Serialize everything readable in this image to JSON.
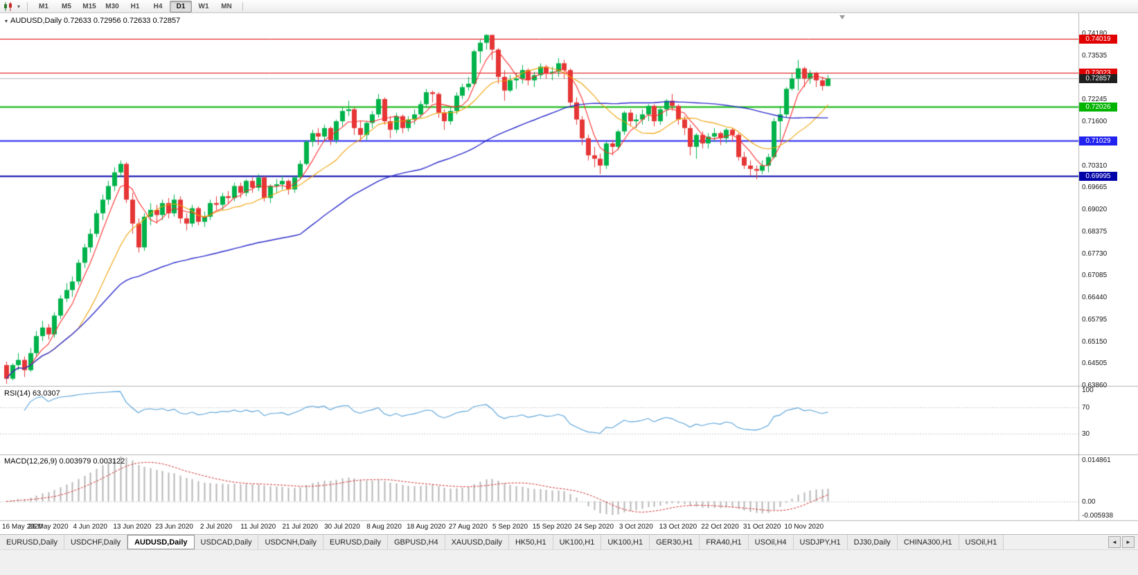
{
  "toolbar": {
    "timeframes": [
      "M1",
      "M5",
      "M15",
      "M30",
      "H1",
      "H4",
      "D1",
      "W1",
      "MN"
    ],
    "active_timeframe": "D1"
  },
  "icons": {
    "dropdown_caret": "▾",
    "title_caret": "▾",
    "tab_scroll_left": "◄",
    "tab_scroll_right": "►"
  },
  "chart": {
    "title": "AUDUSD,Daily  0.72633 0.72956 0.72633 0.72857",
    "price_axis_labels": [
      "0.74180",
      "0.73535",
      "0.72890",
      "0.72245",
      "0.71600",
      "0.70955",
      "0.70310",
      "0.69665",
      "0.69020",
      "0.68375",
      "0.67730",
      "0.67085",
      "0.66440",
      "0.65795",
      "0.65150",
      "0.64505",
      "0.63860"
    ],
    "levels": [
      {
        "price": 0.74019,
        "label": "0.74019",
        "color": "#e00000",
        "lw": 1
      },
      {
        "price": 0.73023,
        "label": "0.73023",
        "color": "#e00000",
        "lw": 1
      },
      {
        "price": 0.72026,
        "label": "0.72026",
        "color": "#00b400",
        "lw": 2
      },
      {
        "price": 0.71029,
        "label": "0.71029",
        "color": "#2121f0",
        "lw": 2
      },
      {
        "price": 0.69995,
        "label": "0.69995",
        "color": "#0000a8",
        "lw": 2
      }
    ],
    "bid": {
      "price": 0.72857,
      "label": "0.72857",
      "line_color": "#b4b4b4",
      "box_color": "#1f1f1f"
    }
  },
  "chart_data": {
    "type": "candlestick",
    "symbol": "AUDUSD",
    "period": "Daily",
    "up_color": "#00b24a",
    "down_color": "#e53535",
    "visible_price_range": [
      0.6386,
      0.7418
    ],
    "x_tick_labels": [
      "16 May 2020",
      "26 May 2020",
      "4 Jun 2020",
      "13 Jun 2020",
      "23 Jun 2020",
      "2 Jul 2020",
      "11 Jul 2020",
      "21 Jul 2020",
      "30 Jul 2020",
      "8 Aug 2020",
      "18 Aug 2020",
      "27 Aug 2020",
      "5 Sep 2020",
      "15 Sep 2020",
      "24 Sep 2020",
      "3 Oct 2020",
      "13 Oct 2020",
      "22 Oct 2020",
      "31 Oct 2020",
      "10 Nov 2020"
    ],
    "bars_per_tick": 7,
    "moving_averages": [
      {
        "type": "SMA",
        "period": 5,
        "color": "#ff2a2a"
      },
      {
        "type": "SMA",
        "period": 13,
        "color": "#f0a000"
      },
      {
        "type": "SMA",
        "period": 50,
        "color": "#2929cc"
      }
    ],
    "candles": [
      [
        0.6445,
        0.6455,
        0.639,
        0.6405
      ],
      [
        0.6405,
        0.645,
        0.64,
        0.6445
      ],
      [
        0.6445,
        0.648,
        0.643,
        0.646
      ],
      [
        0.646,
        0.647,
        0.641,
        0.643
      ],
      [
        0.643,
        0.6495,
        0.6425,
        0.648
      ],
      [
        0.648,
        0.6545,
        0.647,
        0.653
      ],
      [
        0.653,
        0.6575,
        0.6515,
        0.6555
      ],
      [
        0.6555,
        0.6565,
        0.652,
        0.6535
      ],
      [
        0.6535,
        0.66,
        0.6525,
        0.659
      ],
      [
        0.659,
        0.665,
        0.658,
        0.664
      ],
      [
        0.664,
        0.6685,
        0.663,
        0.6665
      ],
      [
        0.6665,
        0.6705,
        0.6645,
        0.669
      ],
      [
        0.669,
        0.6755,
        0.668,
        0.6745
      ],
      [
        0.6745,
        0.68,
        0.673,
        0.679
      ],
      [
        0.679,
        0.6845,
        0.6775,
        0.683
      ],
      [
        0.683,
        0.69,
        0.682,
        0.689
      ],
      [
        0.689,
        0.6945,
        0.687,
        0.693
      ],
      [
        0.693,
        0.6985,
        0.6915,
        0.697
      ],
      [
        0.697,
        0.7025,
        0.6955,
        0.701
      ],
      [
        0.701,
        0.7045,
        0.6995,
        0.7035
      ],
      [
        0.7035,
        0.704,
        0.692,
        0.693
      ],
      [
        0.693,
        0.695,
        0.683,
        0.686
      ],
      [
        0.686,
        0.6875,
        0.6775,
        0.679
      ],
      [
        0.679,
        0.689,
        0.678,
        0.688
      ],
      [
        0.688,
        0.692,
        0.6855,
        0.69
      ],
      [
        0.69,
        0.6915,
        0.686,
        0.6885
      ],
      [
        0.6885,
        0.693,
        0.687,
        0.692
      ],
      [
        0.692,
        0.6935,
        0.6875,
        0.689
      ],
      [
        0.689,
        0.6945,
        0.688,
        0.693
      ],
      [
        0.693,
        0.694,
        0.686,
        0.6875
      ],
      [
        0.6875,
        0.689,
        0.684,
        0.686
      ],
      [
        0.686,
        0.6915,
        0.685,
        0.6905
      ],
      [
        0.6905,
        0.691,
        0.6855,
        0.6865
      ],
      [
        0.6865,
        0.6895,
        0.685,
        0.688
      ],
      [
        0.688,
        0.693,
        0.687,
        0.692
      ],
      [
        0.692,
        0.694,
        0.69,
        0.6915
      ],
      [
        0.6915,
        0.695,
        0.69,
        0.694
      ],
      [
        0.694,
        0.6955,
        0.692,
        0.6935
      ],
      [
        0.6935,
        0.698,
        0.6925,
        0.697
      ],
      [
        0.697,
        0.698,
        0.6935,
        0.695
      ],
      [
        0.695,
        0.699,
        0.694,
        0.6985
      ],
      [
        0.6985,
        0.6995,
        0.695,
        0.6965
      ],
      [
        0.6965,
        0.7005,
        0.6955,
        0.6995
      ],
      [
        0.6995,
        0.7,
        0.6925,
        0.6935
      ],
      [
        0.6935,
        0.6975,
        0.692,
        0.697
      ],
      [
        0.697,
        0.699,
        0.695,
        0.6975
      ],
      [
        0.6975,
        0.7,
        0.696,
        0.6985
      ],
      [
        0.6985,
        0.699,
        0.6945,
        0.696
      ],
      [
        0.696,
        0.7,
        0.695,
        0.6995
      ],
      [
        0.6995,
        0.7045,
        0.699,
        0.7035
      ],
      [
        0.7035,
        0.7105,
        0.703,
        0.71
      ],
      [
        0.71,
        0.7135,
        0.7085,
        0.7125
      ],
      [
        0.7125,
        0.714,
        0.709,
        0.7115
      ],
      [
        0.7115,
        0.715,
        0.71,
        0.714
      ],
      [
        0.714,
        0.7145,
        0.709,
        0.7105
      ],
      [
        0.7105,
        0.7165,
        0.7095,
        0.716
      ],
      [
        0.716,
        0.72,
        0.7145,
        0.719
      ],
      [
        0.719,
        0.722,
        0.7175,
        0.7195
      ],
      [
        0.7195,
        0.72,
        0.712,
        0.714
      ],
      [
        0.714,
        0.716,
        0.71,
        0.712
      ],
      [
        0.712,
        0.716,
        0.7105,
        0.7155
      ],
      [
        0.7155,
        0.719,
        0.714,
        0.718
      ],
      [
        0.718,
        0.724,
        0.717,
        0.7225
      ],
      [
        0.7225,
        0.723,
        0.715,
        0.716
      ],
      [
        0.716,
        0.7175,
        0.711,
        0.7135
      ],
      [
        0.7135,
        0.7185,
        0.7125,
        0.7175
      ],
      [
        0.7175,
        0.718,
        0.7125,
        0.714
      ],
      [
        0.714,
        0.7175,
        0.713,
        0.7165
      ],
      [
        0.7165,
        0.7195,
        0.715,
        0.718
      ],
      [
        0.718,
        0.722,
        0.717,
        0.721
      ],
      [
        0.721,
        0.7255,
        0.72,
        0.7245
      ],
      [
        0.7245,
        0.725,
        0.7215,
        0.724
      ],
      [
        0.724,
        0.7245,
        0.717,
        0.7185
      ],
      [
        0.7185,
        0.7195,
        0.7135,
        0.716
      ],
      [
        0.716,
        0.72,
        0.715,
        0.719
      ],
      [
        0.719,
        0.7245,
        0.718,
        0.7235
      ],
      [
        0.7235,
        0.727,
        0.7225,
        0.726
      ],
      [
        0.726,
        0.729,
        0.725,
        0.727
      ],
      [
        0.727,
        0.737,
        0.7265,
        0.7365
      ],
      [
        0.7365,
        0.74,
        0.733,
        0.739
      ],
      [
        0.739,
        0.7415,
        0.737,
        0.7413
      ],
      [
        0.7413,
        0.7414,
        0.734,
        0.737
      ],
      [
        0.737,
        0.7375,
        0.727,
        0.729
      ],
      [
        0.729,
        0.731,
        0.722,
        0.725
      ],
      [
        0.725,
        0.7295,
        0.7245,
        0.728
      ],
      [
        0.728,
        0.73,
        0.7255,
        0.7285
      ],
      [
        0.7285,
        0.7325,
        0.727,
        0.731
      ],
      [
        0.731,
        0.7315,
        0.7265,
        0.728
      ],
      [
        0.728,
        0.7305,
        0.726,
        0.7295
      ],
      [
        0.7295,
        0.733,
        0.7285,
        0.732
      ],
      [
        0.732,
        0.7325,
        0.7285,
        0.73
      ],
      [
        0.73,
        0.732,
        0.728,
        0.7305
      ],
      [
        0.7305,
        0.7345,
        0.729,
        0.733
      ],
      [
        0.733,
        0.734,
        0.7285,
        0.731
      ],
      [
        0.731,
        0.7315,
        0.72,
        0.7215
      ],
      [
        0.7215,
        0.723,
        0.715,
        0.7165
      ],
      [
        0.7165,
        0.7175,
        0.709,
        0.711
      ],
      [
        0.711,
        0.712,
        0.7045,
        0.706
      ],
      [
        0.706,
        0.7085,
        0.7025,
        0.705
      ],
      [
        0.705,
        0.7065,
        0.7005,
        0.703
      ],
      [
        0.703,
        0.71,
        0.702,
        0.7095
      ],
      [
        0.7095,
        0.7105,
        0.706,
        0.7085
      ],
      [
        0.7085,
        0.7135,
        0.7075,
        0.713
      ],
      [
        0.713,
        0.719,
        0.712,
        0.7185
      ],
      [
        0.7185,
        0.7195,
        0.7145,
        0.716
      ],
      [
        0.716,
        0.718,
        0.714,
        0.7165
      ],
      [
        0.7165,
        0.7195,
        0.715,
        0.718
      ],
      [
        0.718,
        0.721,
        0.716,
        0.7205
      ],
      [
        0.7205,
        0.721,
        0.7145,
        0.716
      ],
      [
        0.716,
        0.72,
        0.715,
        0.7195
      ],
      [
        0.7195,
        0.7225,
        0.7175,
        0.722
      ],
      [
        0.722,
        0.724,
        0.719,
        0.7205
      ],
      [
        0.7205,
        0.721,
        0.715,
        0.7165
      ],
      [
        0.7165,
        0.7175,
        0.712,
        0.714
      ],
      [
        0.714,
        0.715,
        0.706,
        0.7085
      ],
      [
        0.7085,
        0.7125,
        0.705,
        0.712
      ],
      [
        0.712,
        0.713,
        0.708,
        0.7095
      ],
      [
        0.7095,
        0.7125,
        0.708,
        0.7115
      ],
      [
        0.7115,
        0.714,
        0.71,
        0.7125
      ],
      [
        0.7125,
        0.713,
        0.709,
        0.711
      ],
      [
        0.711,
        0.714,
        0.7095,
        0.7135
      ],
      [
        0.7135,
        0.714,
        0.71,
        0.712
      ],
      [
        0.712,
        0.7125,
        0.7045,
        0.7055
      ],
      [
        0.7055,
        0.707,
        0.702,
        0.703
      ],
      [
        0.703,
        0.7045,
        0.7,
        0.702
      ],
      [
        0.702,
        0.703,
        0.699,
        0.7015
      ],
      [
        0.7015,
        0.7045,
        0.7005,
        0.703
      ],
      [
        0.703,
        0.7065,
        0.701,
        0.7055
      ],
      [
        0.7055,
        0.717,
        0.705,
        0.716
      ],
      [
        0.716,
        0.7205,
        0.7105,
        0.718
      ],
      [
        0.718,
        0.726,
        0.717,
        0.7255
      ],
      [
        0.7255,
        0.73,
        0.725,
        0.7285
      ],
      [
        0.7285,
        0.734,
        0.725,
        0.7315
      ],
      [
        0.7315,
        0.732,
        0.726,
        0.7285
      ],
      [
        0.7285,
        0.731,
        0.727,
        0.73
      ],
      [
        0.73,
        0.7305,
        0.726,
        0.728
      ],
      [
        0.728,
        0.729,
        0.725,
        0.72633
      ],
      [
        0.72633,
        0.72956,
        0.72633,
        0.72857
      ]
    ]
  },
  "rsi": {
    "label": "RSI(14) 63.0307",
    "period": 14,
    "value": "63.0307",
    "axis_labels": [
      "100",
      "70",
      "30"
    ],
    "levels": [
      70,
      30
    ],
    "line_color": "#54a1da",
    "range": [
      0,
      100
    ]
  },
  "macd": {
    "label": "MACD(12,26,9) 0.003979 0.003122",
    "params": "12,26,9",
    "main_value": "0.003979",
    "signal_value": "0.003122",
    "axis_labels": [
      "0.014861",
      "0.00",
      "-0.005938"
    ],
    "range": [
      -0.005938,
      0.014861
    ],
    "hist_color": "#b5b5b5",
    "signal_color": "#d52b2b"
  },
  "tabs": {
    "items": [
      "EURUSD,Daily",
      "USDCHF,Daily",
      "AUDUSD,Daily",
      "USDCAD,Daily",
      "USDCNH,Daily",
      "EURUSD,Daily",
      "GBPUSD,H4",
      "XAUUSD,Daily",
      "HK50,H1",
      "UK100,H1",
      "UK100,H1",
      "GER30,H1",
      "FRA40,H1",
      "USOil,H4",
      "USDJPY,H1",
      "DJ30,Daily",
      "CHINA300,H1",
      "USOil,H1"
    ],
    "active_index": 2
  }
}
